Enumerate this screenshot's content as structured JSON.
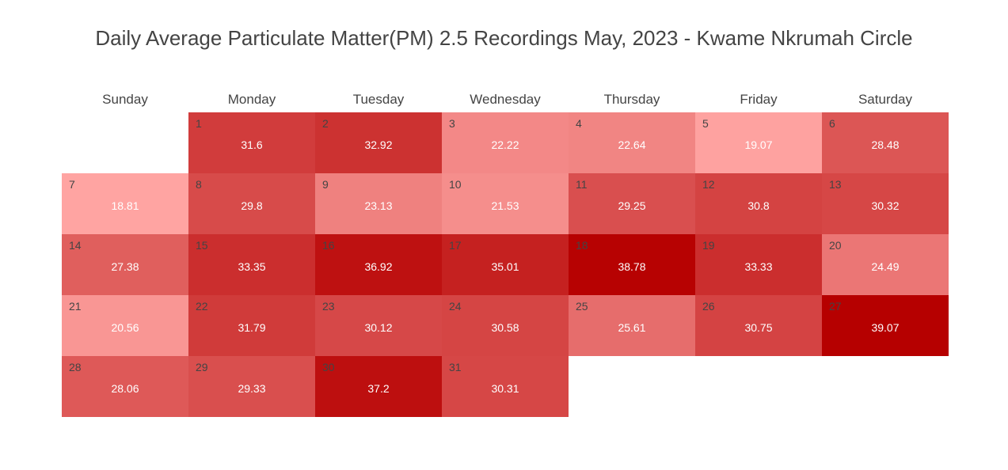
{
  "chart_data": {
    "type": "heatmap",
    "title": "Daily Average Particulate Matter(PM) 2.5 Recordings May, 2023 - Kwame Nkrumah Circle",
    "weekdays": [
      "Sunday",
      "Monday",
      "Tuesday",
      "Wednesday",
      "Thursday",
      "Friday",
      "Saturday"
    ],
    "first_weekday_index": 1,
    "days": [
      1,
      2,
      3,
      4,
      5,
      6,
      7,
      8,
      9,
      10,
      11,
      12,
      13,
      14,
      15,
      16,
      17,
      18,
      19,
      20,
      21,
      22,
      23,
      24,
      25,
      26,
      27,
      28,
      29,
      30,
      31
    ],
    "values": [
      31.6,
      32.92,
      22.22,
      22.64,
      19.07,
      28.48,
      18.81,
      29.8,
      23.13,
      21.53,
      29.25,
      30.8,
      30.32,
      27.38,
      33.35,
      36.92,
      35.01,
      38.78,
      33.33,
      24.49,
      20.56,
      31.79,
      30.12,
      30.58,
      25.61,
      30.75,
      39.07,
      28.06,
      29.33,
      37.2,
      30.31
    ],
    "value_labels": [
      "31.6",
      "32.92",
      "22.22",
      "22.64",
      "19.07",
      "28.48",
      "18.81",
      "29.8",
      "23.13",
      "21.53",
      "29.25",
      "30.8",
      "30.32",
      "27.38",
      "33.35",
      "36.92",
      "35.01",
      "38.78",
      "33.33",
      "24.49",
      "20.56",
      "31.79",
      "30.12",
      "30.58",
      "25.61",
      "30.75",
      "39.07",
      "28.06",
      "29.33",
      "37.2",
      "30.31"
    ],
    "color_scale": {
      "min": 18.81,
      "max": 39.07,
      "low_color": "#ffa4a2",
      "high_color": "#b60000"
    }
  }
}
